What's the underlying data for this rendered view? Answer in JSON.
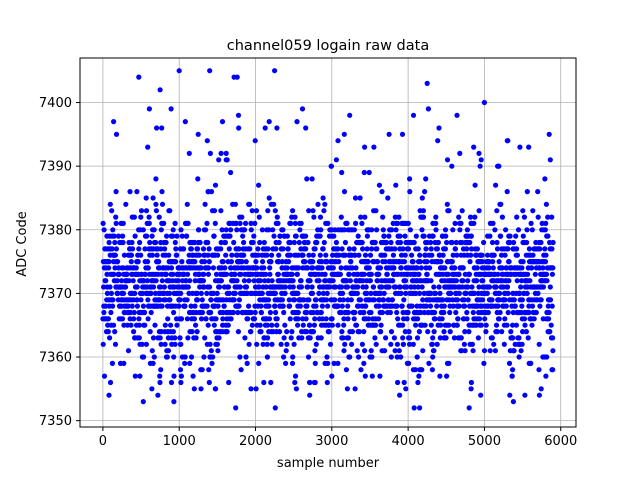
{
  "chart_data": {
    "type": "scatter",
    "title": "channel059 logain raw data",
    "xlabel": "sample number",
    "ylabel": "ADC Code",
    "xlim": [
      -300,
      6200
    ],
    "ylim": [
      7349,
      7407
    ],
    "xticks": [
      0,
      1000,
      2000,
      3000,
      4000,
      5000,
      6000
    ],
    "yticks": [
      7350,
      7360,
      7370,
      7380,
      7390,
      7400
    ],
    "grid": true,
    "marker_color": "#0000ff",
    "x_range": [
      0,
      5900
    ],
    "y_min": 7352,
    "y_max": 7405,
    "y_center": 7372,
    "notable_points": [
      {
        "x": 1000,
        "y": 7405
      },
      {
        "x": 1400,
        "y": 7405
      },
      {
        "x": 2250,
        "y": 7405
      },
      {
        "x": 470,
        "y": 7404
      },
      {
        "x": 1720,
        "y": 7404
      },
      {
        "x": 1760,
        "y": 7404
      },
      {
        "x": 4250,
        "y": 7403
      },
      {
        "x": 750,
        "y": 7402
      },
      {
        "x": 5000,
        "y": 7400
      },
      {
        "x": 1740,
        "y": 7352
      },
      {
        "x": 2260,
        "y": 7352
      },
      {
        "x": 4080,
        "y": 7352
      },
      {
        "x": 4150,
        "y": 7352
      },
      {
        "x": 4800,
        "y": 7352
      },
      {
        "x": 530,
        "y": 7353
      },
      {
        "x": 930,
        "y": 7353
      },
      {
        "x": 5380,
        "y": 7353
      },
      {
        "x": 80,
        "y": 7354
      },
      {
        "x": 5720,
        "y": 7354
      }
    ]
  }
}
